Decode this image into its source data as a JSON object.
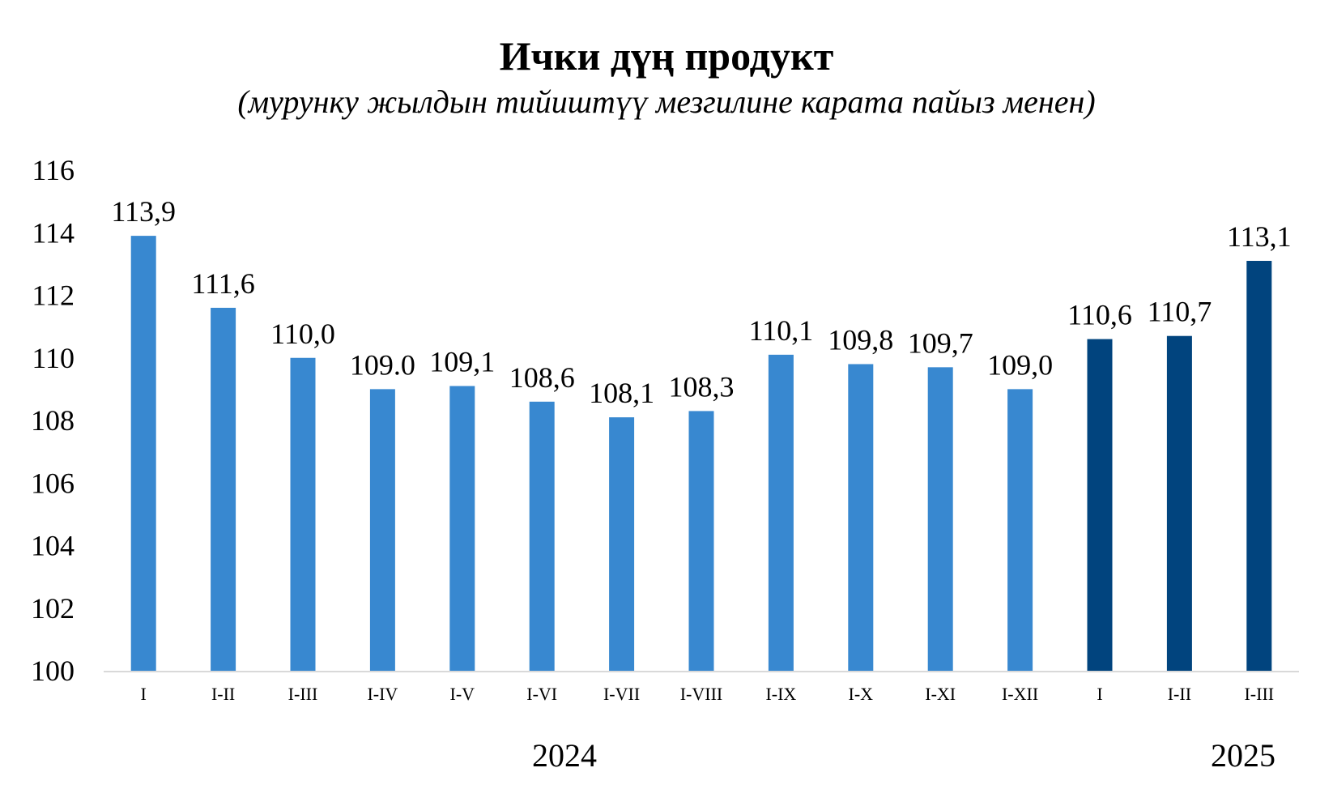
{
  "chart_data": {
    "type": "bar",
    "title": "Ички дүң продукт",
    "subtitle": "(мурунку жылдын тийиштүү мезгилине карата пайыз менен)",
    "xlabel": "",
    "ylabel": "",
    "ylim": [
      100,
      116
    ],
    "yticks": [
      "100",
      "102",
      "104",
      "106",
      "108",
      "110",
      "112",
      "114",
      "116"
    ],
    "grid": false,
    "legend": "none",
    "categories": [
      "I",
      "I-II",
      "I-III",
      "I-IV",
      "I-V",
      "I-VI",
      "I-VII",
      "I-VIII",
      "I-IX",
      "I-X",
      "I-XI",
      "I-XII",
      "I",
      "I-II",
      "I-III"
    ],
    "values": [
      113.9,
      111.6,
      110.0,
      109.0,
      109.1,
      108.6,
      108.1,
      108.3,
      110.1,
      109.8,
      109.7,
      109.0,
      110.6,
      110.7,
      113.1
    ],
    "data_labels": [
      "113,9",
      "111,6",
      "110,0",
      "109.0",
      "109,1",
      "108,6",
      "108,1",
      "108,3",
      "110,1",
      "109,8",
      "109,7",
      "109,0",
      "110,6",
      "110,7",
      "113,1"
    ],
    "groups": [
      {
        "year": "2024",
        "count": 12,
        "color": "#3888d0"
      },
      {
        "year": "2025",
        "count": 3,
        "color": "#01447e"
      }
    ],
    "axis_color": "#d9d9d9"
  }
}
